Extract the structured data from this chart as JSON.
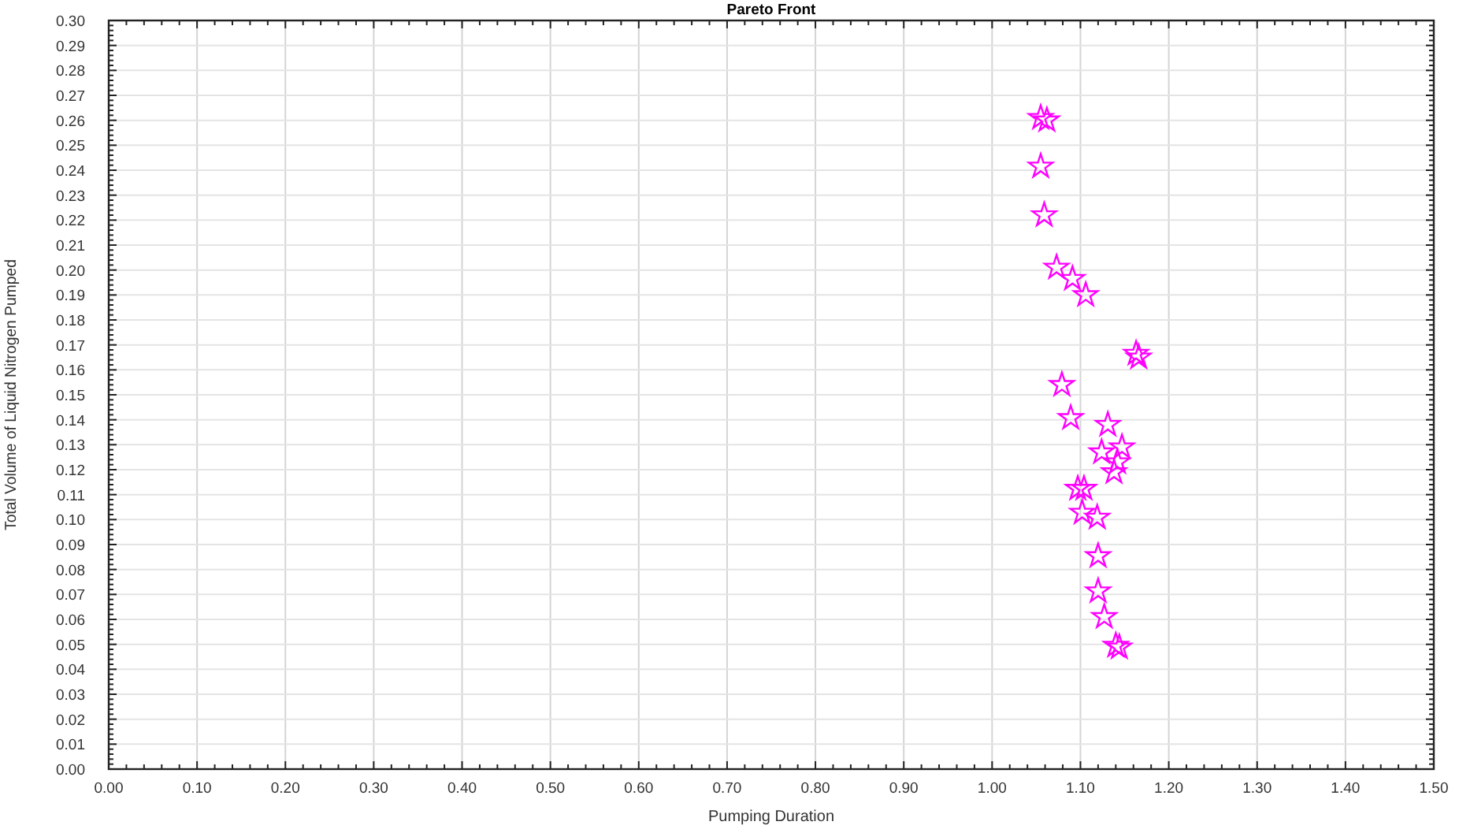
{
  "chart_data": {
    "type": "scatter",
    "title": "Pareto Front",
    "xlabel": "Pumping Duration",
    "ylabel": "Total Volume of Liquid Nitrogen Pumped",
    "series": [
      {
        "color": "#ff00ff",
        "x": [
          1.055,
          1.062,
          1.055,
          1.059,
          1.073,
          1.091,
          1.106,
          1.163,
          1.166,
          1.079,
          1.089,
          1.131,
          1.147,
          1.124,
          1.142,
          1.138,
          1.097,
          1.104,
          1.102,
          1.119,
          1.12,
          1.12,
          1.127,
          1.14,
          1.144
        ],
        "values": [
          0.261,
          0.26,
          0.2415,
          0.222,
          0.201,
          0.1965,
          0.19,
          0.1665,
          0.165,
          0.154,
          0.1407,
          0.138,
          0.129,
          0.127,
          0.123,
          0.119,
          0.1124,
          0.1124,
          0.1028,
          0.1008,
          0.0854,
          0.0713,
          0.061,
          0.0495,
          0.0488
        ]
      }
    ],
    "xlim": [
      0,
      1.5
    ],
    "xticks": [
      {
        "value": 0,
        "label": "0.00"
      },
      {
        "value": 0.1,
        "label": "0.10"
      },
      {
        "value": 0.2,
        "label": "0.20"
      },
      {
        "value": 0.3,
        "label": "0.30"
      },
      {
        "value": 0.4,
        "label": "0.40"
      },
      {
        "value": 0.5,
        "label": "0.50"
      },
      {
        "value": 0.6,
        "label": "0.60"
      },
      {
        "value": 0.7,
        "label": "0.70"
      },
      {
        "value": 0.8,
        "label": "0.80"
      },
      {
        "value": 0.9,
        "label": "0.90"
      },
      {
        "value": 1.0,
        "label": "1.00"
      },
      {
        "value": 1.1,
        "label": "1.10"
      },
      {
        "value": 1.2,
        "label": "1.20"
      },
      {
        "value": 1.3,
        "label": "1.30"
      },
      {
        "value": 1.4,
        "label": "1.40"
      },
      {
        "value": 1.5,
        "label": "1.50"
      }
    ],
    "ylim": [
      0,
      0.3
    ],
    "yticks": [
      {
        "value": 0,
        "label": "0.00"
      },
      {
        "value": 0.01,
        "label": "0.01"
      },
      {
        "value": 0.02,
        "label": "0.02"
      },
      {
        "value": 0.03,
        "label": "0.03"
      },
      {
        "value": 0.04,
        "label": "0.04"
      },
      {
        "value": 0.05,
        "label": "0.05"
      },
      {
        "value": 0.06,
        "label": "0.06"
      },
      {
        "value": 0.07,
        "label": "0.07"
      },
      {
        "value": 0.08,
        "label": "0.08"
      },
      {
        "value": 0.09,
        "label": "0.09"
      },
      {
        "value": 0.1,
        "label": "0.10"
      },
      {
        "value": 0.11,
        "label": "0.11"
      },
      {
        "value": 0.12,
        "label": "0.12"
      },
      {
        "value": 0.13,
        "label": "0.13"
      },
      {
        "value": 0.14,
        "label": "0.14"
      },
      {
        "value": 0.15,
        "label": "0.15"
      },
      {
        "value": 0.16,
        "label": "0.16"
      },
      {
        "value": 0.17,
        "label": "0.17"
      },
      {
        "value": 0.18,
        "label": "0.18"
      },
      {
        "value": 0.19,
        "label": "0.19"
      },
      {
        "value": 0.2,
        "label": "0.20"
      },
      {
        "value": 0.21,
        "label": "0.21"
      },
      {
        "value": 0.22,
        "label": "0.22"
      },
      {
        "value": 0.23,
        "label": "0.23"
      },
      {
        "value": 0.24,
        "label": "0.24"
      },
      {
        "value": 0.25,
        "label": "0.25"
      },
      {
        "value": 0.26,
        "label": "0.26"
      },
      {
        "value": 0.27,
        "label": "0.27"
      },
      {
        "value": 0.28,
        "label": "0.28"
      },
      {
        "value": 0.29,
        "label": "0.29"
      },
      {
        "value": 0.3,
        "label": "0.30"
      }
    ],
    "grid": true,
    "marker": "star"
  }
}
